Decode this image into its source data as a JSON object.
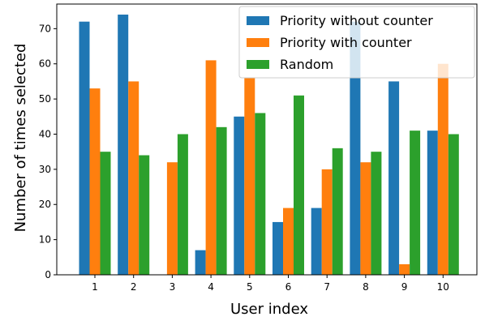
{
  "chart_data": {
    "type": "bar",
    "title": "",
    "xlabel": "User index",
    "ylabel": "Number of times selected",
    "categories": [
      "1",
      "2",
      "3",
      "4",
      "5",
      "6",
      "7",
      "8",
      "9",
      "10"
    ],
    "ylim": [
      0,
      77
    ],
    "yticks": [
      "0",
      "10",
      "20",
      "30",
      "40",
      "50",
      "60",
      "70"
    ],
    "grid": false,
    "legend_position": "top-right",
    "series": [
      {
        "name": "Priority without counter",
        "color": "#1f77b4",
        "values": [
          72,
          74,
          0,
          7,
          45,
          15,
          19,
          72,
          55,
          41
        ]
      },
      {
        "name": "Priority with counter",
        "color": "#ff7f0e",
        "values": [
          53,
          55,
          32,
          61,
          56,
          19,
          30,
          32,
          3,
          60
        ]
      },
      {
        "name": "Random",
        "color": "#2ca02c",
        "values": [
          35,
          34,
          40,
          42,
          46,
          51,
          36,
          35,
          41,
          40
        ]
      }
    ]
  }
}
